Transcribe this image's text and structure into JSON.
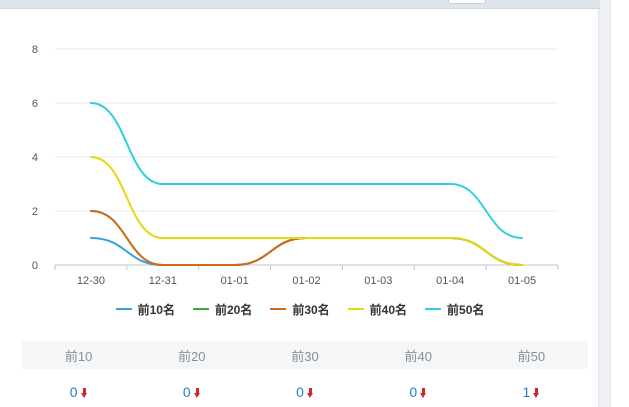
{
  "chart_data": {
    "type": "line",
    "categories": [
      "12-30",
      "12-31",
      "01-01",
      "01-02",
      "01-03",
      "01-04",
      "01-05"
    ],
    "ylim": [
      0,
      8
    ],
    "yticks": [
      0,
      2,
      4,
      6,
      8
    ],
    "grid": true,
    "smooth": true,
    "legend_position": "bottom",
    "series": [
      {
        "name": "前10名",
        "color": "#3aa0dd",
        "values": [
          1,
          0,
          0,
          1,
          1,
          1,
          0
        ]
      },
      {
        "name": "前20名",
        "color": "#3ea838",
        "values": [
          2,
          0,
          0,
          1,
          1,
          1,
          0
        ]
      },
      {
        "name": "前30名",
        "color": "#d2691e",
        "values": [
          2,
          0,
          0,
          1,
          1,
          1,
          0
        ]
      },
      {
        "name": "前40名",
        "color": "#e3d90f",
        "values": [
          4,
          1,
          1,
          1,
          1,
          1,
          0
        ]
      },
      {
        "name": "前50名",
        "color": "#2fcfe0",
        "values": [
          6,
          3,
          3,
          3,
          3,
          3,
          1
        ]
      }
    ]
  },
  "summary": {
    "columns": [
      {
        "label": "前10",
        "value": "0",
        "trend": "down"
      },
      {
        "label": "前20",
        "value": "0",
        "trend": "down"
      },
      {
        "label": "前30",
        "value": "0",
        "trend": "down"
      },
      {
        "label": "前40",
        "value": "0",
        "trend": "down"
      },
      {
        "label": "前50",
        "value": "1",
        "trend": "down"
      }
    ]
  }
}
